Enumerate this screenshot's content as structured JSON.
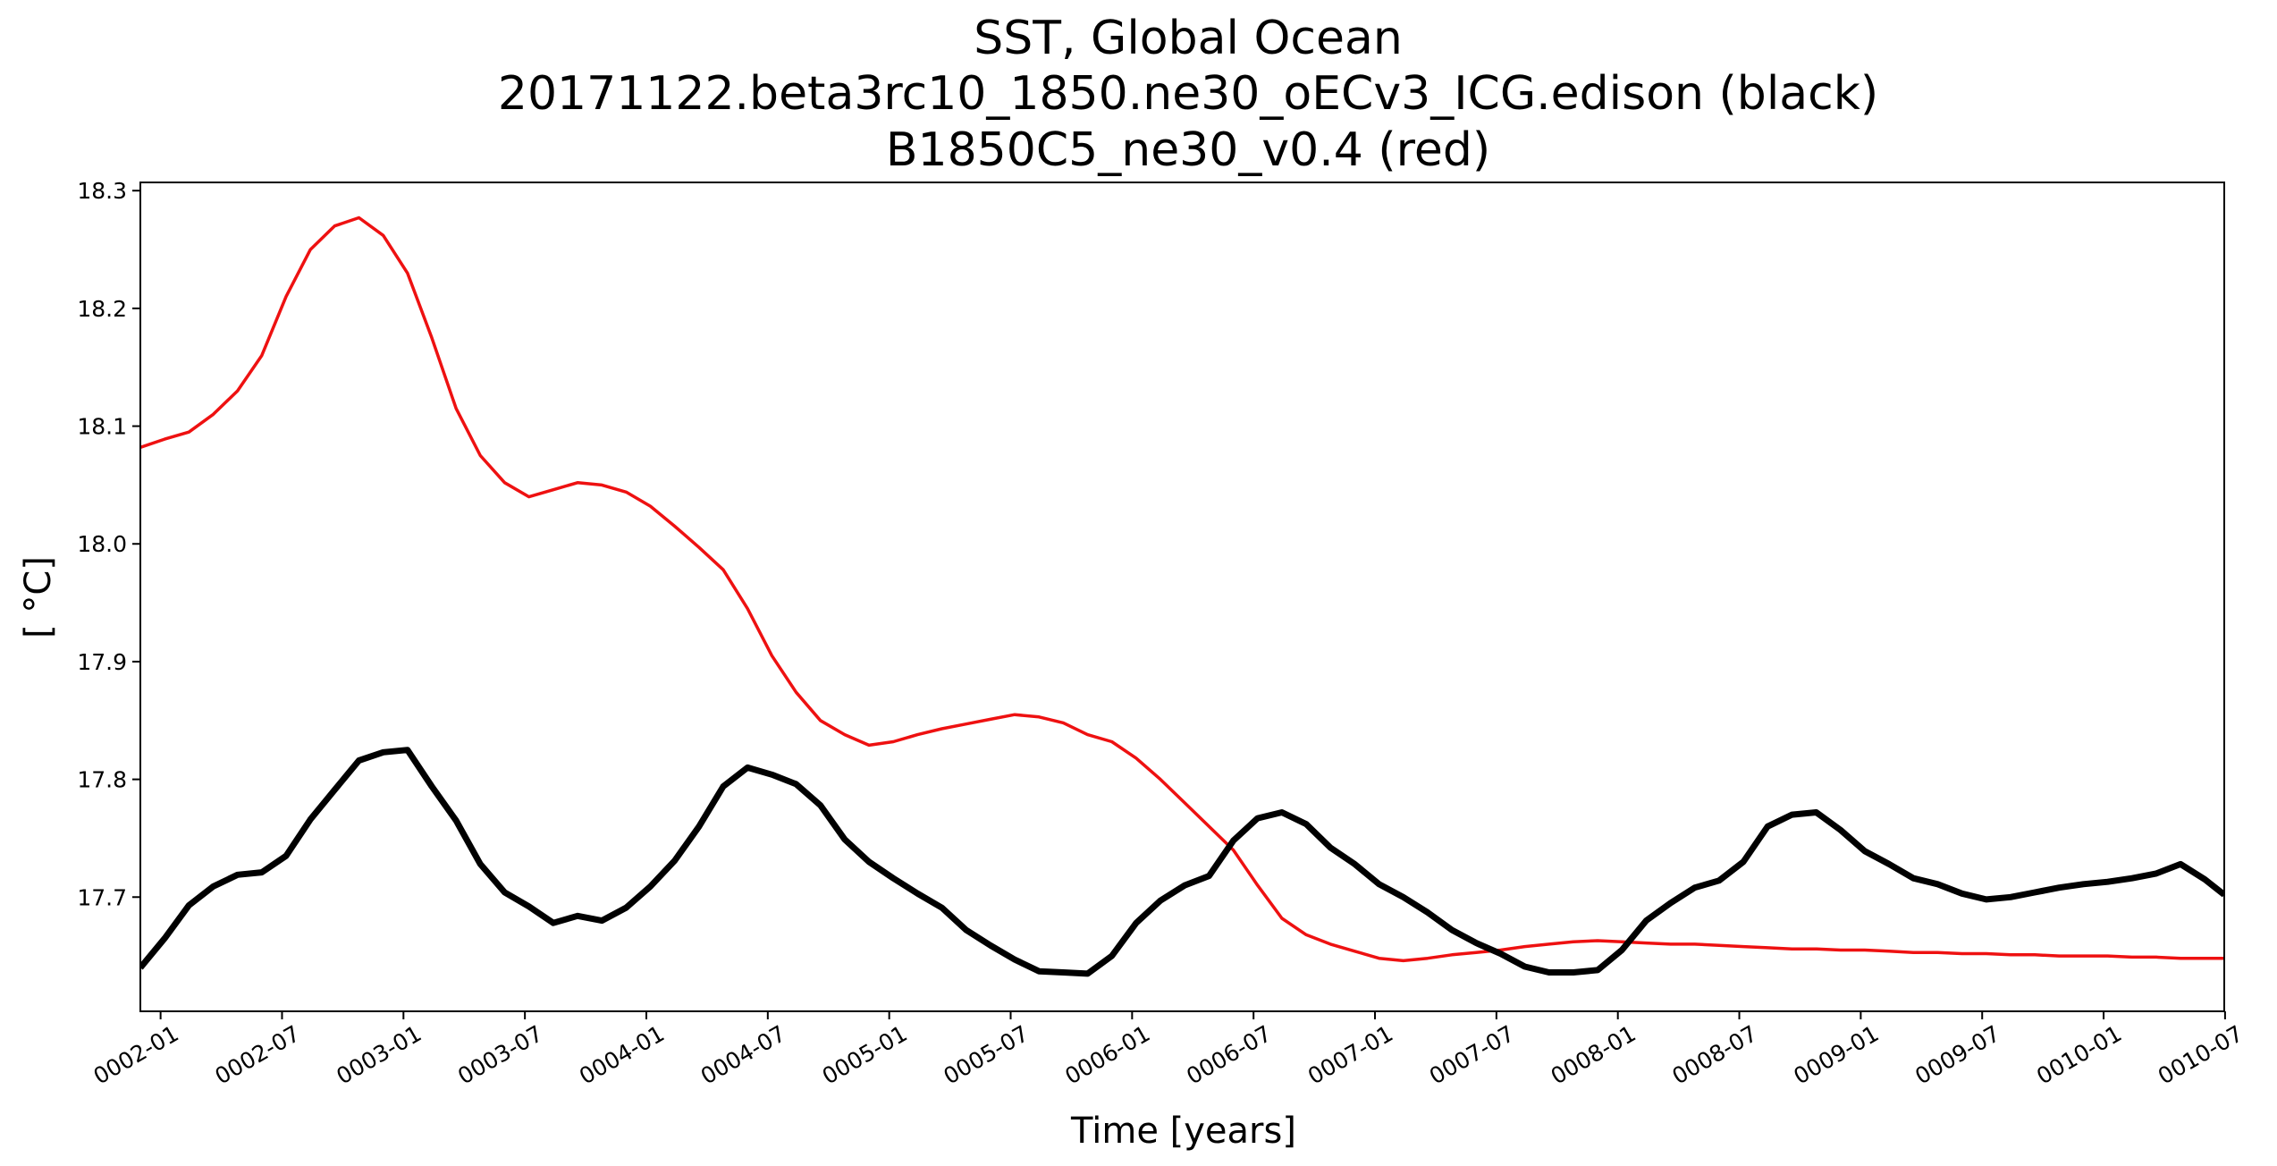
{
  "chart_data": {
    "type": "line",
    "title": [
      "SST, Global Ocean",
      "20171122.beta3rc10_1850.ne30_oECv3_ICG.edison (black)",
      "B1850C5_ne30_v0.4 (red)"
    ],
    "xlabel": "Time [years]",
    "ylabel": "[ °C]",
    "xlim": [
      1.0,
      9.58
    ],
    "ylim": [
      17.603,
      18.307
    ],
    "yticks": [
      17.7,
      17.8,
      17.9,
      18.0,
      18.1,
      18.2,
      18.3
    ],
    "ytick_labels": [
      "17.7",
      "17.8",
      "17.9",
      "18.0",
      "18.1",
      "18.2",
      "18.3"
    ],
    "xticks": [
      1.0833,
      1.5833,
      2.0833,
      2.5833,
      3.0833,
      3.5833,
      4.0833,
      4.5833,
      5.0833,
      5.5833,
      6.0833,
      6.5833,
      7.0833,
      7.5833,
      8.0833,
      8.5833,
      9.0833,
      9.5833
    ],
    "xtick_labels": [
      "0002-01",
      "0002-07",
      "0003-01",
      "0003-07",
      "0004-01",
      "0004-07",
      "0005-01",
      "0005-07",
      "0006-01",
      "0006-07",
      "0007-01",
      "0007-07",
      "0008-01",
      "0008-07",
      "0009-01",
      "0009-07",
      "0010-01",
      "0010-07"
    ],
    "grid": false,
    "x": [
      1.0,
      1.1,
      1.2,
      1.3,
      1.4,
      1.5,
      1.6,
      1.7,
      1.8,
      1.9,
      2.0,
      2.1,
      2.2,
      2.3,
      2.4,
      2.5,
      2.6,
      2.7,
      2.8,
      2.9,
      3.0,
      3.1,
      3.2,
      3.3,
      3.4,
      3.5,
      3.6,
      3.7,
      3.8,
      3.9,
      4.0,
      4.1,
      4.2,
      4.3,
      4.4,
      4.5,
      4.6,
      4.7,
      4.8,
      4.9,
      5.0,
      5.1,
      5.2,
      5.3,
      5.4,
      5.5,
      5.6,
      5.7,
      5.8,
      5.9,
      6.0,
      6.1,
      6.2,
      6.3,
      6.4,
      6.5,
      6.6,
      6.7,
      6.8,
      6.9,
      7.0,
      7.1,
      7.2,
      7.3,
      7.4,
      7.5,
      7.6,
      7.7,
      7.8,
      7.9,
      8.0,
      8.1,
      8.2,
      8.3,
      8.4,
      8.5,
      8.6,
      8.7,
      8.8,
      8.9,
      9.0,
      9.1,
      9.2,
      9.3,
      9.4,
      9.5,
      9.58
    ],
    "series": [
      {
        "name": "20171122.beta3rc10_1850.ne30_oECv3_ICG.edison",
        "color": "#000000",
        "linewidth": 7,
        "values": [
          17.64,
          17.665,
          17.693,
          17.709,
          17.719,
          17.721,
          17.735,
          17.766,
          17.791,
          17.816,
          17.823,
          17.825,
          17.794,
          17.765,
          17.728,
          17.704,
          17.692,
          17.678,
          17.684,
          17.68,
          17.691,
          17.709,
          17.731,
          17.76,
          17.794,
          17.81,
          17.804,
          17.796,
          17.778,
          17.749,
          17.73,
          17.716,
          17.703,
          17.691,
          17.672,
          17.659,
          17.647,
          17.637,
          17.636,
          17.635,
          17.65,
          17.678,
          17.697,
          17.71,
          17.718,
          17.748,
          17.767,
          17.772,
          17.762,
          17.742,
          17.728,
          17.711,
          17.7,
          17.687,
          17.672,
          17.661,
          17.652,
          17.641,
          17.636,
          17.636,
          17.638,
          17.655,
          17.68,
          17.695,
          17.708,
          17.714,
          17.73,
          17.76,
          17.77,
          17.772,
          17.757,
          17.739,
          17.728,
          17.716,
          17.711,
          17.703,
          17.698,
          17.7,
          17.704,
          17.708,
          17.711,
          17.713,
          17.716,
          17.72,
          17.728,
          17.715,
          17.702
        ]
      },
      {
        "name": "B1850C5_ne30_v0.4",
        "color": "#ee1111",
        "linewidth": 3.5,
        "values": [
          18.082,
          18.089,
          18.095,
          18.11,
          18.13,
          18.16,
          18.21,
          18.25,
          18.27,
          18.277,
          18.262,
          18.23,
          18.175,
          18.115,
          18.075,
          18.052,
          18.04,
          18.046,
          18.052,
          18.05,
          18.044,
          18.032,
          18.015,
          17.997,
          17.978,
          17.945,
          17.905,
          17.874,
          17.85,
          17.838,
          17.829,
          17.832,
          17.838,
          17.843,
          17.847,
          17.851,
          17.855,
          17.853,
          17.848,
          17.838,
          17.832,
          17.818,
          17.8,
          17.78,
          17.76,
          17.74,
          17.71,
          17.682,
          17.668,
          17.66,
          17.654,
          17.648,
          17.646,
          17.648,
          17.651,
          17.653,
          17.655,
          17.658,
          17.66,
          17.662,
          17.663,
          17.662,
          17.661,
          17.66,
          17.66,
          17.659,
          17.658,
          17.657,
          17.656,
          17.656,
          17.655,
          17.655,
          17.654,
          17.653,
          17.653,
          17.652,
          17.652,
          17.651,
          17.651,
          17.65,
          17.65,
          17.65,
          17.649,
          17.649,
          17.648,
          17.648,
          17.648
        ]
      }
    ]
  }
}
